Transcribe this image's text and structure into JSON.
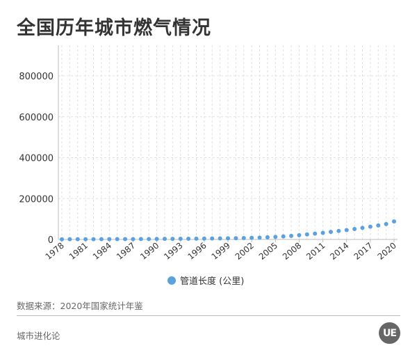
{
  "page": {
    "title": "全国历年城市燃气情况",
    "source": "数据来源：2020年国家统计年鉴",
    "brand": "城市进化论",
    "logo_text": "UE"
  },
  "colors": {
    "series": "#5aa1df",
    "grid": "#e0e0e0",
    "axis": "#bbbbbb",
    "text": "#333333"
  },
  "chart_data": {
    "type": "scatter",
    "title": "全国历年城市燃气情况",
    "xlabel": "",
    "ylabel": "",
    "ylim": [
      0,
      950000
    ],
    "yticks": [
      0,
      200000,
      400000,
      600000,
      800000
    ],
    "x": [
      1978,
      1979,
      1980,
      1981,
      1982,
      1983,
      1984,
      1985,
      1986,
      1987,
      1988,
      1989,
      1990,
      1991,
      1992,
      1993,
      1994,
      1995,
      1996,
      1997,
      1998,
      1999,
      2000,
      2001,
      2002,
      2003,
      2004,
      2005,
      2006,
      2007,
      2008,
      2009,
      2010,
      2011,
      2012,
      2013,
      2014,
      2015,
      2016,
      2017,
      2018,
      2019,
      2020
    ],
    "xticks": [
      1978,
      1981,
      1984,
      1987,
      1990,
      1993,
      1996,
      1999,
      2002,
      2005,
      2008,
      2011,
      2014,
      2017,
      2020
    ],
    "grid": true,
    "legend_position": "bottom-center",
    "series": [
      {
        "name": "管道长度 (公里)",
        "values": [
          1000,
          1100,
          1200,
          1300,
          1400,
          1500,
          1600,
          1700,
          1800,
          1900,
          2100,
          2300,
          2500,
          2800,
          3000,
          3300,
          3600,
          4000,
          4400,
          4800,
          5200,
          5600,
          6000,
          7000,
          8000,
          9000,
          10500,
          12500,
          15000,
          17500,
          21000,
          24500,
          28500,
          32500,
          37000,
          41500,
          46000,
          51000,
          56500,
          62500,
          68500,
          75500,
          88000
        ]
      }
    ]
  }
}
